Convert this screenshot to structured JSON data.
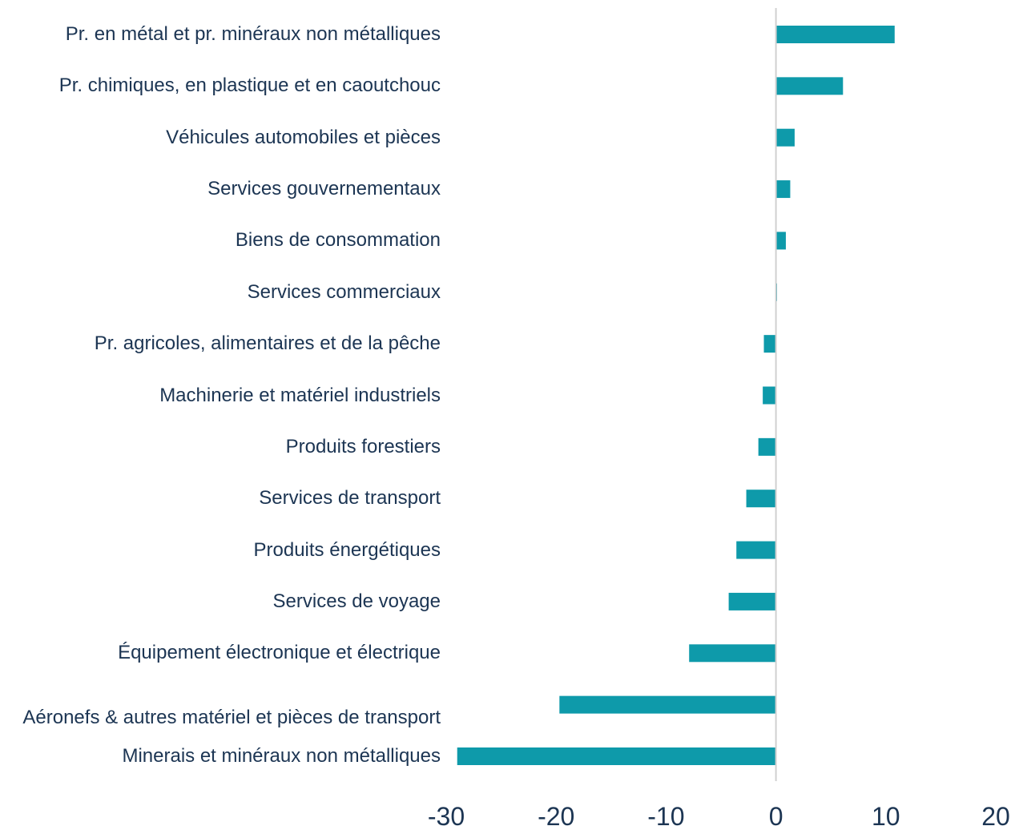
{
  "chart_data": {
    "type": "barh",
    "categories": [
      "Pr. en métal et pr. minéraux non métalliques",
      "Pr. chimiques, en plastique et en caoutchouc",
      "Véhicules automobiles et pièces",
      "Services gouvernementaux",
      "Biens de consommation",
      "Services commerciaux",
      "Pr. agricoles, alimentaires et de la pêche",
      "Machinerie et matériel industriels",
      "Produits forestiers",
      "Services de transport",
      "Produits énergétiques",
      "Services de voyage",
      "Équipement électronique et électrique",
      "Aéronefs & autres matériel et pièces de transport",
      "Minerais et minéraux non métalliques"
    ],
    "values": [
      10.8,
      6.1,
      1.7,
      1.3,
      0.9,
      0.1,
      -1.1,
      -1.2,
      -1.6,
      -2.7,
      -3.6,
      -4.3,
      -7.9,
      -19.7,
      -29.0
    ],
    "color": "#0e9aaa",
    "xlim": [
      -30,
      20
    ],
    "xticks": [
      -30,
      -20,
      -10,
      0,
      10,
      20
    ]
  }
}
